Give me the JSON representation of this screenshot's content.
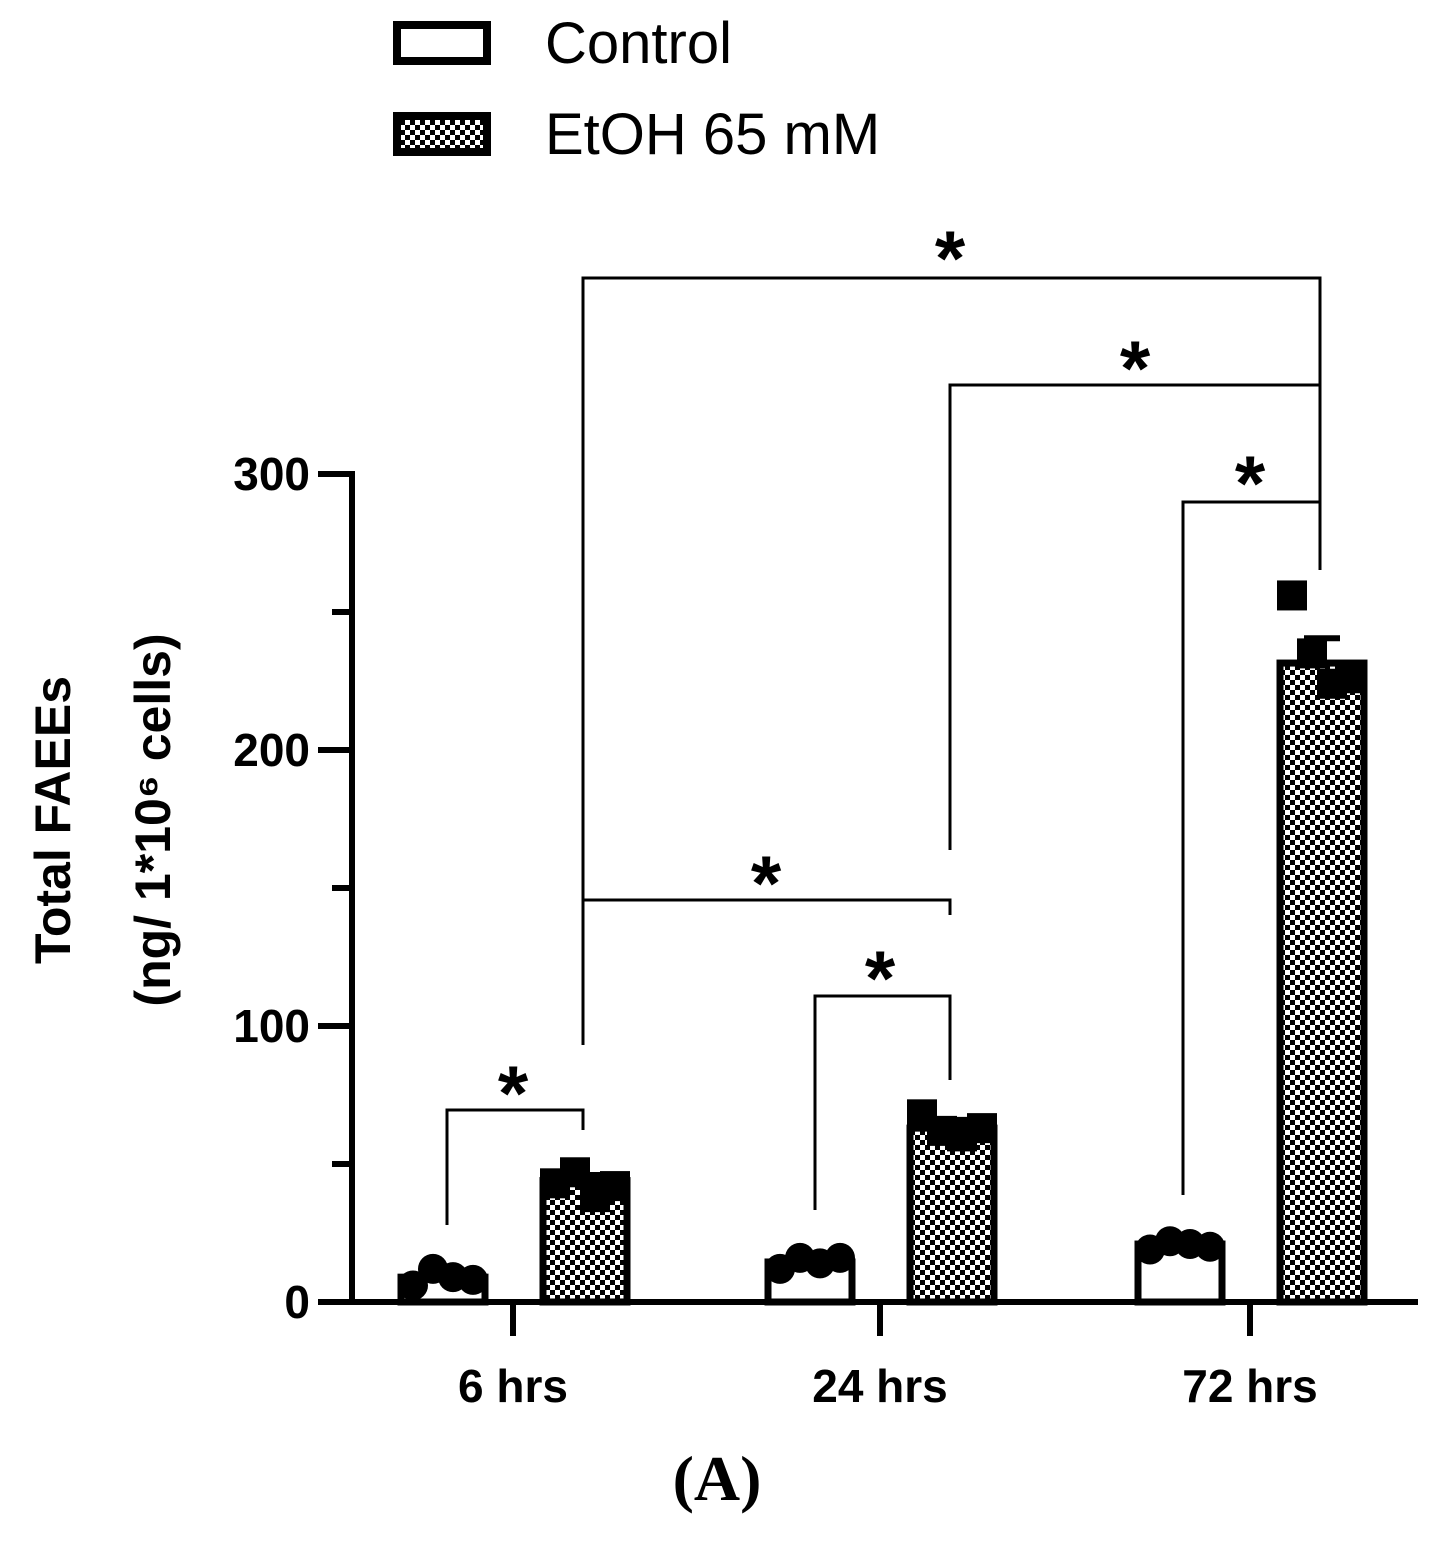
{
  "chart_data": {
    "type": "bar",
    "y_label_lines": [
      "Total  FAEEs",
      "(ng/ 1*10⁶ cells)"
    ],
    "caption": "(A)",
    "categories": [
      "6 hrs",
      "24 hrs",
      "72 hrs"
    ],
    "series": [
      {
        "name": "Control",
        "color": "#ffffff",
        "values": [
          9,
          14.5,
          21
        ],
        "errors": [
          1,
          1,
          1
        ],
        "points": [
          [
            6,
            12,
            9,
            8
          ],
          [
            12,
            16,
            14,
            16
          ],
          [
            19,
            22,
            21,
            20
          ]
        ]
      },
      {
        "name": "EtOH 65 mM",
        "color": "checker",
        "values": [
          44,
          63,
          231.5
        ],
        "errors": [
          2,
          3,
          9
        ],
        "points": [
          [
            43,
            47,
            38,
            42
          ],
          [
            68,
            62,
            60,
            63
          ],
          [
            256,
            235,
            224,
            226
          ]
        ]
      }
    ],
    "ylim": [
      0,
      300
    ],
    "yticks": [
      0,
      100,
      200,
      300
    ],
    "yticks_minor": [
      50,
      150,
      250
    ],
    "significance": [
      "*",
      "*",
      "*",
      "*",
      "*",
      "*"
    ]
  }
}
